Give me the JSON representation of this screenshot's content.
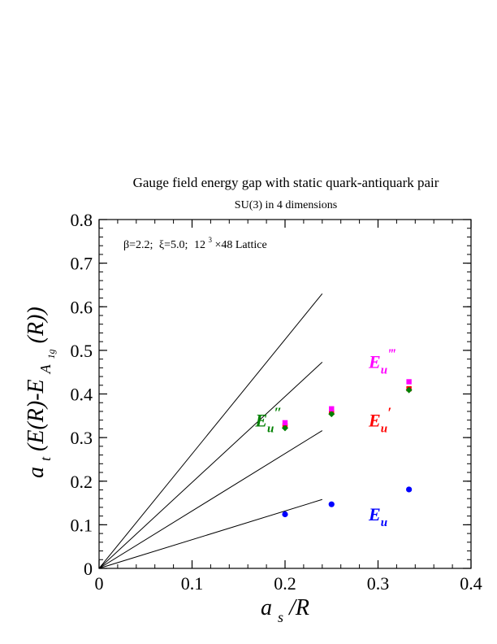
{
  "chart_data": {
    "type": "scatter",
    "title": "Gauge field energy gap with static quark-antiquark pair",
    "subtitle": "SU(3) in 4 dimensions",
    "annotation": {
      "beta": "β=2.2;",
      "xi": "ξ=5.0;",
      "lattice_base": "12",
      "lattice_exp": "3",
      "lattice_rest": "×48 Lattice"
    },
    "xlabel": {
      "main": "a",
      "sub": "s",
      "rest": "/R"
    },
    "ylabel": {
      "pre": "a",
      "sub1": "t",
      "mid": "(E(R)-E",
      "sub2": "A",
      "subsub": "1g",
      "post": "(R))"
    },
    "xlim": [
      0,
      0.4
    ],
    "ylim": [
      0,
      0.8
    ],
    "x_major_ticks": [
      0,
      0.1,
      0.2,
      0.3,
      0.4
    ],
    "x_tick_labels": [
      "0",
      "0.1",
      "0.2",
      "0.3",
      "0.4"
    ],
    "y_major_ticks": [
      0,
      0.1,
      0.2,
      0.3,
      0.4,
      0.5,
      0.6,
      0.7,
      0.8
    ],
    "y_tick_labels": [
      "0",
      "0.1",
      "0.2",
      "0.3",
      "0.4",
      "0.5",
      "0.6",
      "0.7",
      "0.8"
    ],
    "x_minor_step": 0.02,
    "y_minor_step": 0.02,
    "grid": false,
    "lines": [
      {
        "x": [
          0,
          0.24
        ],
        "y": [
          0,
          0.158
        ]
      },
      {
        "x": [
          0,
          0.24
        ],
        "y": [
          0,
          0.316
        ]
      },
      {
        "x": [
          0,
          0.24
        ],
        "y": [
          0,
          0.473
        ]
      },
      {
        "x": [
          0,
          0.24
        ],
        "y": [
          0,
          0.63
        ]
      }
    ],
    "series": [
      {
        "label": "E",
        "label_sub": "u",
        "label_prime": "",
        "color": "#0000ff",
        "marker": "circle",
        "x": [
          0.2,
          0.25,
          0.3333
        ],
        "y": [
          0.124,
          0.147,
          0.181
        ],
        "label_at": [
          0.29,
          0.11
        ]
      },
      {
        "label": "E",
        "label_sub": "u",
        "label_prime": "′",
        "color": "#ff0000",
        "marker": "square",
        "x": [
          0.2,
          0.25,
          0.3333
        ],
        "y": [
          0.327,
          0.358,
          0.412
        ],
        "label_at": [
          0.29,
          0.325
        ]
      },
      {
        "label": "E",
        "label_sub": "u",
        "label_prime": "″",
        "color": "#008000",
        "marker": "diamond",
        "x": [
          0.2,
          0.25,
          0.3333
        ],
        "y": [
          0.322,
          0.354,
          0.409
        ],
        "label_at": [
          0.168,
          0.325
        ]
      },
      {
        "label": "E",
        "label_sub": "u",
        "label_prime": "‴",
        "color": "#ff00ff",
        "marker": "square",
        "x": [
          0.2,
          0.25,
          0.3333
        ],
        "y": [
          0.334,
          0.366,
          0.428
        ],
        "label_at": [
          0.29,
          0.46
        ]
      }
    ],
    "colors": {
      "axis": "#000000",
      "line": "#000000"
    }
  }
}
